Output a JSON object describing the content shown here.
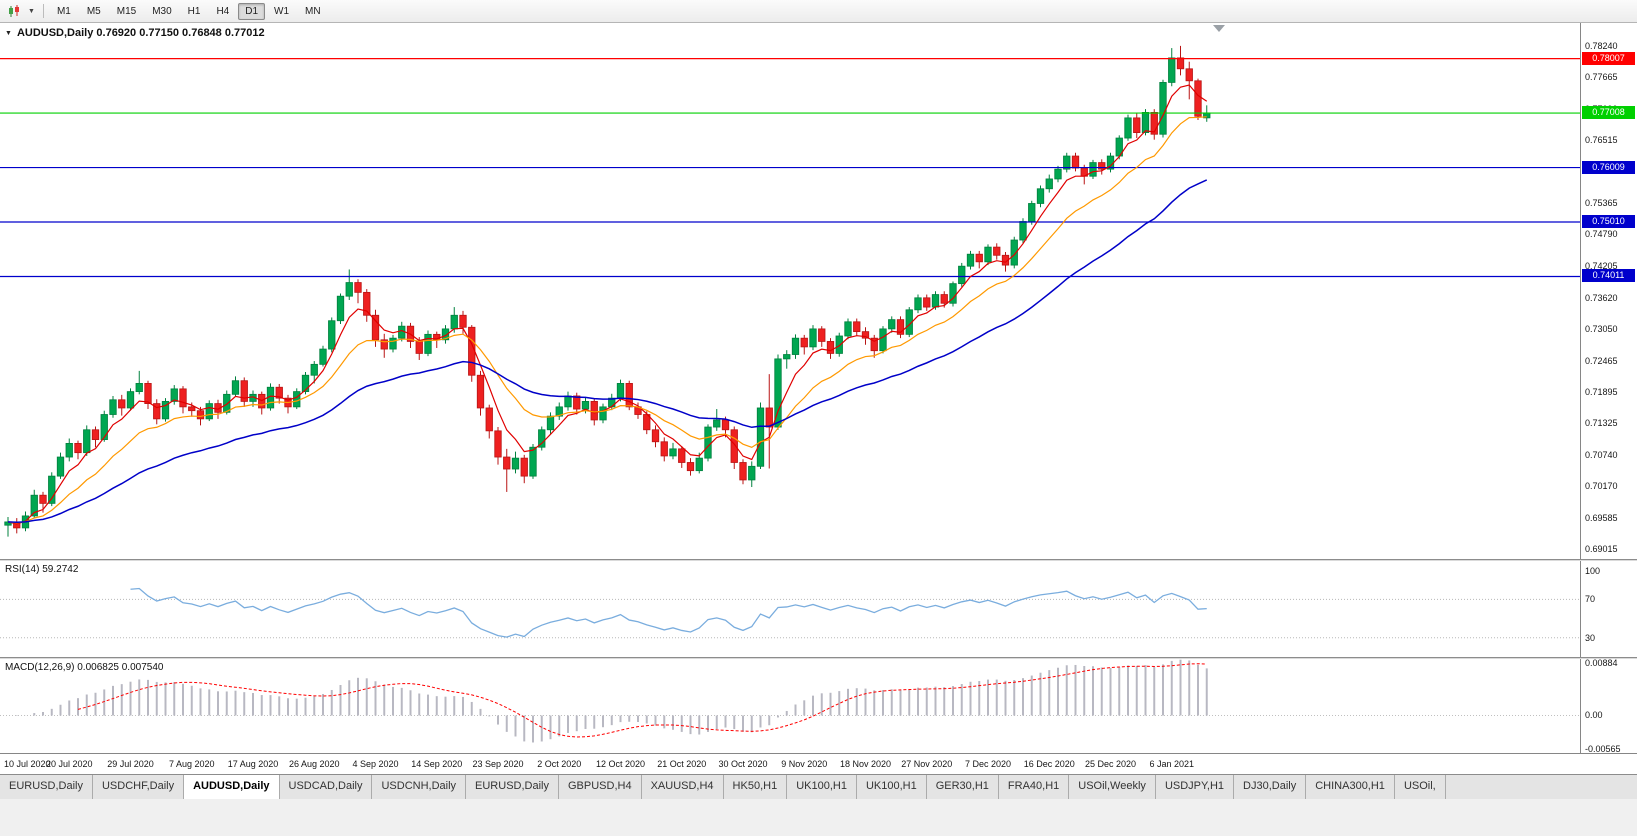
{
  "toolbar": {
    "timeframes": [
      {
        "label": "M1",
        "active": false
      },
      {
        "label": "M5",
        "active": false
      },
      {
        "label": "M15",
        "active": false
      },
      {
        "label": "M30",
        "active": false
      },
      {
        "label": "H1",
        "active": false
      },
      {
        "label": "H4",
        "active": false
      },
      {
        "label": "D1",
        "active": true
      },
      {
        "label": "W1",
        "active": false
      },
      {
        "label": "MN",
        "active": false
      }
    ]
  },
  "chart": {
    "title_text": "AUDUSD,Daily 0.76920 0.77150 0.76848 0.77012",
    "rsi_label": "RSI(14) 59.2742",
    "macd_label": "MACD(12,26,9) 0.006825 0.007540"
  },
  "chart_data": {
    "type": "candlestick",
    "symbol": "AUDUSD",
    "timeframe": "Daily",
    "last_ohlc": {
      "open": 0.7692,
      "high": 0.7715,
      "low": 0.76848,
      "close": 0.77012
    },
    "ylim": [
      0.6883,
      0.7866
    ],
    "price_ticks": [
      "0.78240",
      "0.77665",
      "0.77090",
      "0.76515",
      "0.75940",
      "0.75365",
      "0.74790",
      "0.74205",
      "0.73620",
      "0.73050",
      "0.72465",
      "0.71895",
      "0.71325",
      "0.70740",
      "0.70170",
      "0.69585",
      "0.69015"
    ],
    "x_labels": [
      "10 Jul 2020",
      "20 Jul 2020",
      "29 Jul 2020",
      "7 Aug 2020",
      "17 Aug 2020",
      "26 Aug 2020",
      "4 Sep 2020",
      "14 Sep 2020",
      "23 Sep 2020",
      "2 Oct 2020",
      "12 Oct 2020",
      "21 Oct 2020",
      "30 Oct 2020",
      "9 Nov 2020",
      "18 Nov 2020",
      "27 Nov 2020",
      "7 Dec 2020",
      "16 Dec 2020",
      "25 Dec 2020",
      "6 Jan 2021"
    ],
    "x_label_step": 7,
    "hlines": [
      {
        "price": 0.78007,
        "label": "0.78007",
        "color": "#ff0000"
      },
      {
        "price": 0.77008,
        "label": "0.77008",
        "color": "#00d000"
      },
      {
        "price": 0.76009,
        "label": "0.76009",
        "color": "#0000cc"
      },
      {
        "price": 0.7501,
        "label": "0.75010",
        "color": "#0000cc"
      },
      {
        "price": 0.74011,
        "label": "0.74011",
        "color": "#0000cc"
      }
    ],
    "moving_averages": [
      {
        "name": "ma-fast",
        "period": 5,
        "color": "#e00000",
        "width": 1.2
      },
      {
        "name": "ma-mid",
        "period": 13,
        "color": "#ff9900",
        "width": 1.2
      },
      {
        "name": "ma-slow",
        "period": 34,
        "color": "#0000c8",
        "width": 1.5
      }
    ],
    "rsi": {
      "period": 14,
      "value": 59.2742,
      "levels": [
        70,
        30
      ],
      "scale_labels": [
        "100",
        "70",
        "30"
      ],
      "color": "#7aadde"
    },
    "macd": {
      "fast": 12,
      "slow": 26,
      "signal": 9,
      "values": [
        0.006825,
        0.00754
      ],
      "scale_labels": [
        "0.00884",
        "0.00",
        "-0.00565"
      ],
      "hist_color": "#b8b8c2",
      "signal_color": "#ff0000"
    },
    "colors": {
      "up": "#00a651",
      "up_border": "#00803e",
      "down": "#ee2020",
      "down_border": "#b81414",
      "background": "#ffffff"
    },
    "candles": [
      [
        0.6945,
        0.696,
        0.6924,
        0.6951
      ],
      [
        0.6951,
        0.6958,
        0.693,
        0.694
      ],
      [
        0.694,
        0.697,
        0.6934,
        0.6962
      ],
      [
        0.6962,
        0.701,
        0.6958,
        0.7
      ],
      [
        0.7,
        0.7006,
        0.6968,
        0.6985
      ],
      [
        0.6985,
        0.7042,
        0.698,
        0.7035
      ],
      [
        0.7035,
        0.7078,
        0.703,
        0.707
      ],
      [
        0.707,
        0.7104,
        0.7062,
        0.7095
      ],
      [
        0.7095,
        0.71,
        0.7066,
        0.7078
      ],
      [
        0.7078,
        0.7128,
        0.7072,
        0.712
      ],
      [
        0.712,
        0.7126,
        0.7088,
        0.7102
      ],
      [
        0.7102,
        0.7155,
        0.7098,
        0.7148
      ],
      [
        0.7148,
        0.7182,
        0.7142,
        0.7175
      ],
      [
        0.7175,
        0.7184,
        0.7146,
        0.716
      ],
      [
        0.716,
        0.7196,
        0.7155,
        0.719
      ],
      [
        0.719,
        0.7228,
        0.7185,
        0.7205
      ],
      [
        0.7205,
        0.721,
        0.7158,
        0.7168
      ],
      [
        0.7168,
        0.7176,
        0.713,
        0.714
      ],
      [
        0.714,
        0.7178,
        0.7135,
        0.7172
      ],
      [
        0.7172,
        0.7202,
        0.7166,
        0.7195
      ],
      [
        0.7195,
        0.72,
        0.715,
        0.7162
      ],
      [
        0.7162,
        0.717,
        0.7144,
        0.7155
      ],
      [
        0.7155,
        0.7162,
        0.7128,
        0.714
      ],
      [
        0.714,
        0.7174,
        0.7136,
        0.7168
      ],
      [
        0.7168,
        0.7175,
        0.714,
        0.7152
      ],
      [
        0.7152,
        0.7192,
        0.7148,
        0.7185
      ],
      [
        0.7185,
        0.7218,
        0.718,
        0.721
      ],
      [
        0.721,
        0.7216,
        0.7162,
        0.7172
      ],
      [
        0.7172,
        0.7192,
        0.7162,
        0.7185
      ],
      [
        0.7185,
        0.719,
        0.7148,
        0.716
      ],
      [
        0.716,
        0.7205,
        0.7155,
        0.7198
      ],
      [
        0.7198,
        0.7204,
        0.7168,
        0.7178
      ],
      [
        0.7178,
        0.7184,
        0.715,
        0.7162
      ],
      [
        0.7162,
        0.7196,
        0.7158,
        0.719
      ],
      [
        0.719,
        0.7226,
        0.7185,
        0.722
      ],
      [
        0.722,
        0.7246,
        0.7205,
        0.724
      ],
      [
        0.724,
        0.7274,
        0.7236,
        0.7268
      ],
      [
        0.7268,
        0.7326,
        0.7262,
        0.732
      ],
      [
        0.732,
        0.737,
        0.7314,
        0.7365
      ],
      [
        0.7365,
        0.7414,
        0.7358,
        0.739
      ],
      [
        0.739,
        0.7396,
        0.7352,
        0.7372
      ],
      [
        0.7372,
        0.7378,
        0.7318,
        0.733
      ],
      [
        0.733,
        0.734,
        0.7272,
        0.7285
      ],
      [
        0.7285,
        0.7296,
        0.7252,
        0.7268
      ],
      [
        0.7268,
        0.7294,
        0.7262,
        0.7288
      ],
      [
        0.7288,
        0.7318,
        0.7282,
        0.731
      ],
      [
        0.731,
        0.7316,
        0.727,
        0.7282
      ],
      [
        0.7282,
        0.729,
        0.7248,
        0.726
      ],
      [
        0.726,
        0.7302,
        0.7255,
        0.7295
      ],
      [
        0.7295,
        0.73,
        0.727,
        0.7285
      ],
      [
        0.7285,
        0.7312,
        0.7278,
        0.7305
      ],
      [
        0.7305,
        0.7345,
        0.7298,
        0.733
      ],
      [
        0.733,
        0.7338,
        0.7296,
        0.7308
      ],
      [
        0.7308,
        0.7312,
        0.7208,
        0.722
      ],
      [
        0.722,
        0.7228,
        0.7146,
        0.716
      ],
      [
        0.716,
        0.7166,
        0.7104,
        0.7118
      ],
      [
        0.7118,
        0.7125,
        0.7056,
        0.707
      ],
      [
        0.707,
        0.7085,
        0.7006,
        0.7048
      ],
      [
        0.7048,
        0.708,
        0.704,
        0.7068
      ],
      [
        0.7068,
        0.7074,
        0.7022,
        0.7035
      ],
      [
        0.7035,
        0.7094,
        0.703,
        0.7088
      ],
      [
        0.7088,
        0.7126,
        0.7082,
        0.712
      ],
      [
        0.712,
        0.7152,
        0.7112,
        0.7145
      ],
      [
        0.7145,
        0.717,
        0.7138,
        0.7162
      ],
      [
        0.7162,
        0.719,
        0.7155,
        0.7182
      ],
      [
        0.7182,
        0.7188,
        0.7148,
        0.7158
      ],
      [
        0.7158,
        0.718,
        0.715,
        0.7172
      ],
      [
        0.7172,
        0.7178,
        0.7128,
        0.7138
      ],
      [
        0.7138,
        0.7168,
        0.7132,
        0.7162
      ],
      [
        0.7162,
        0.7186,
        0.7156,
        0.7178
      ],
      [
        0.7178,
        0.7212,
        0.7172,
        0.7205
      ],
      [
        0.7205,
        0.721,
        0.7156,
        0.7162
      ],
      [
        0.7162,
        0.717,
        0.714,
        0.7148
      ],
      [
        0.7148,
        0.7154,
        0.7112,
        0.712
      ],
      [
        0.712,
        0.7128,
        0.7088,
        0.7098
      ],
      [
        0.7098,
        0.7106,
        0.7062,
        0.7072
      ],
      [
        0.7072,
        0.7096,
        0.7066,
        0.7085
      ],
      [
        0.7085,
        0.709,
        0.705,
        0.706
      ],
      [
        0.706,
        0.7068,
        0.7036,
        0.7045
      ],
      [
        0.7045,
        0.7078,
        0.704,
        0.7068
      ],
      [
        0.7068,
        0.713,
        0.7062,
        0.7125
      ],
      [
        0.7125,
        0.7158,
        0.7118,
        0.7138
      ],
      [
        0.7138,
        0.7144,
        0.7106,
        0.712
      ],
      [
        0.712,
        0.7126,
        0.7048,
        0.706
      ],
      [
        0.706,
        0.7066,
        0.702,
        0.7028
      ],
      [
        0.7028,
        0.7062,
        0.7015,
        0.7053
      ],
      [
        0.7053,
        0.717,
        0.7048,
        0.716
      ],
      [
        0.716,
        0.7222,
        0.7049,
        0.7125
      ],
      [
        0.7125,
        0.7258,
        0.712,
        0.725
      ],
      [
        0.725,
        0.7266,
        0.7232,
        0.7258
      ],
      [
        0.7258,
        0.7295,
        0.725,
        0.7288
      ],
      [
        0.7288,
        0.7294,
        0.7258,
        0.7272
      ],
      [
        0.7272,
        0.7312,
        0.7266,
        0.7305
      ],
      [
        0.7305,
        0.731,
        0.7272,
        0.7282
      ],
      [
        0.7282,
        0.7288,
        0.725,
        0.726
      ],
      [
        0.726,
        0.7298,
        0.7254,
        0.7292
      ],
      [
        0.7292,
        0.7324,
        0.7286,
        0.7318
      ],
      [
        0.7318,
        0.7324,
        0.7292,
        0.73
      ],
      [
        0.73,
        0.7308,
        0.7276,
        0.7288
      ],
      [
        0.7288,
        0.7294,
        0.7252,
        0.7265
      ],
      [
        0.7265,
        0.731,
        0.726,
        0.7305
      ],
      [
        0.7305,
        0.7328,
        0.7298,
        0.7322
      ],
      [
        0.7322,
        0.7328,
        0.7288,
        0.7295
      ],
      [
        0.7295,
        0.7345,
        0.729,
        0.734
      ],
      [
        0.734,
        0.7368,
        0.7334,
        0.7362
      ],
      [
        0.7362,
        0.7368,
        0.7338,
        0.7345
      ],
      [
        0.7345,
        0.7374,
        0.734,
        0.7368
      ],
      [
        0.7368,
        0.7374,
        0.7344,
        0.7352
      ],
      [
        0.7352,
        0.7392,
        0.7346,
        0.7388
      ],
      [
        0.7388,
        0.7426,
        0.7382,
        0.742
      ],
      [
        0.742,
        0.7448,
        0.7414,
        0.7442
      ],
      [
        0.7442,
        0.7448,
        0.7416,
        0.7428
      ],
      [
        0.7428,
        0.746,
        0.7422,
        0.7455
      ],
      [
        0.7455,
        0.7462,
        0.7432,
        0.744
      ],
      [
        0.744,
        0.7446,
        0.741,
        0.7422
      ],
      [
        0.7422,
        0.7474,
        0.7416,
        0.7468
      ],
      [
        0.7468,
        0.7508,
        0.7462,
        0.7502
      ],
      [
        0.7502,
        0.754,
        0.7496,
        0.7535
      ],
      [
        0.7535,
        0.7568,
        0.7528,
        0.7562
      ],
      [
        0.7562,
        0.7588,
        0.7555,
        0.758
      ],
      [
        0.758,
        0.7604,
        0.7574,
        0.7598
      ],
      [
        0.7598,
        0.7628,
        0.7592,
        0.7622
      ],
      [
        0.7622,
        0.7628,
        0.7594,
        0.76
      ],
      [
        0.76,
        0.7606,
        0.757,
        0.7585
      ],
      [
        0.7585,
        0.7615,
        0.758,
        0.761
      ],
      [
        0.761,
        0.7616,
        0.7588,
        0.7598
      ],
      [
        0.7598,
        0.7628,
        0.7592,
        0.7622
      ],
      [
        0.7622,
        0.766,
        0.7616,
        0.7655
      ],
      [
        0.7655,
        0.7698,
        0.765,
        0.7692
      ],
      [
        0.7692,
        0.77,
        0.7655,
        0.7665
      ],
      [
        0.7665,
        0.7708,
        0.766,
        0.7702
      ],
      [
        0.7702,
        0.7708,
        0.7652,
        0.7662
      ],
      [
        0.7662,
        0.7762,
        0.7656,
        0.7757
      ],
      [
        0.7757,
        0.782,
        0.775,
        0.7802
      ],
      [
        0.7802,
        0.7824,
        0.777,
        0.7782
      ],
      [
        0.7782,
        0.7795,
        0.7726,
        0.776
      ],
      [
        0.776,
        0.7764,
        0.7688,
        0.7695
      ],
      [
        0.7692,
        0.7715,
        0.76848,
        0.77012
      ]
    ]
  },
  "tabs": [
    {
      "label": "EURUSD,Daily",
      "active": false
    },
    {
      "label": "USDCHF,Daily",
      "active": false
    },
    {
      "label": "AUDUSD,Daily",
      "active": true
    },
    {
      "label": "USDCAD,Daily",
      "active": false
    },
    {
      "label": "USDCNH,Daily",
      "active": false
    },
    {
      "label": "EURUSD,Daily",
      "active": false
    },
    {
      "label": "GBPUSD,H4",
      "active": false
    },
    {
      "label": "XAUUSD,H4",
      "active": false
    },
    {
      "label": "HK50,H1",
      "active": false
    },
    {
      "label": "UK100,H1",
      "active": false
    },
    {
      "label": "UK100,H1",
      "active": false
    },
    {
      "label": "GER30,H1",
      "active": false
    },
    {
      "label": "FRA40,H1",
      "active": false
    },
    {
      "label": "USOil,Weekly",
      "active": false
    },
    {
      "label": "USDJPY,H1",
      "active": false
    },
    {
      "label": "DJ30,Daily",
      "active": false
    },
    {
      "label": "CHINA300,H1",
      "active": false
    },
    {
      "label": "USOil,",
      "active": false
    }
  ]
}
